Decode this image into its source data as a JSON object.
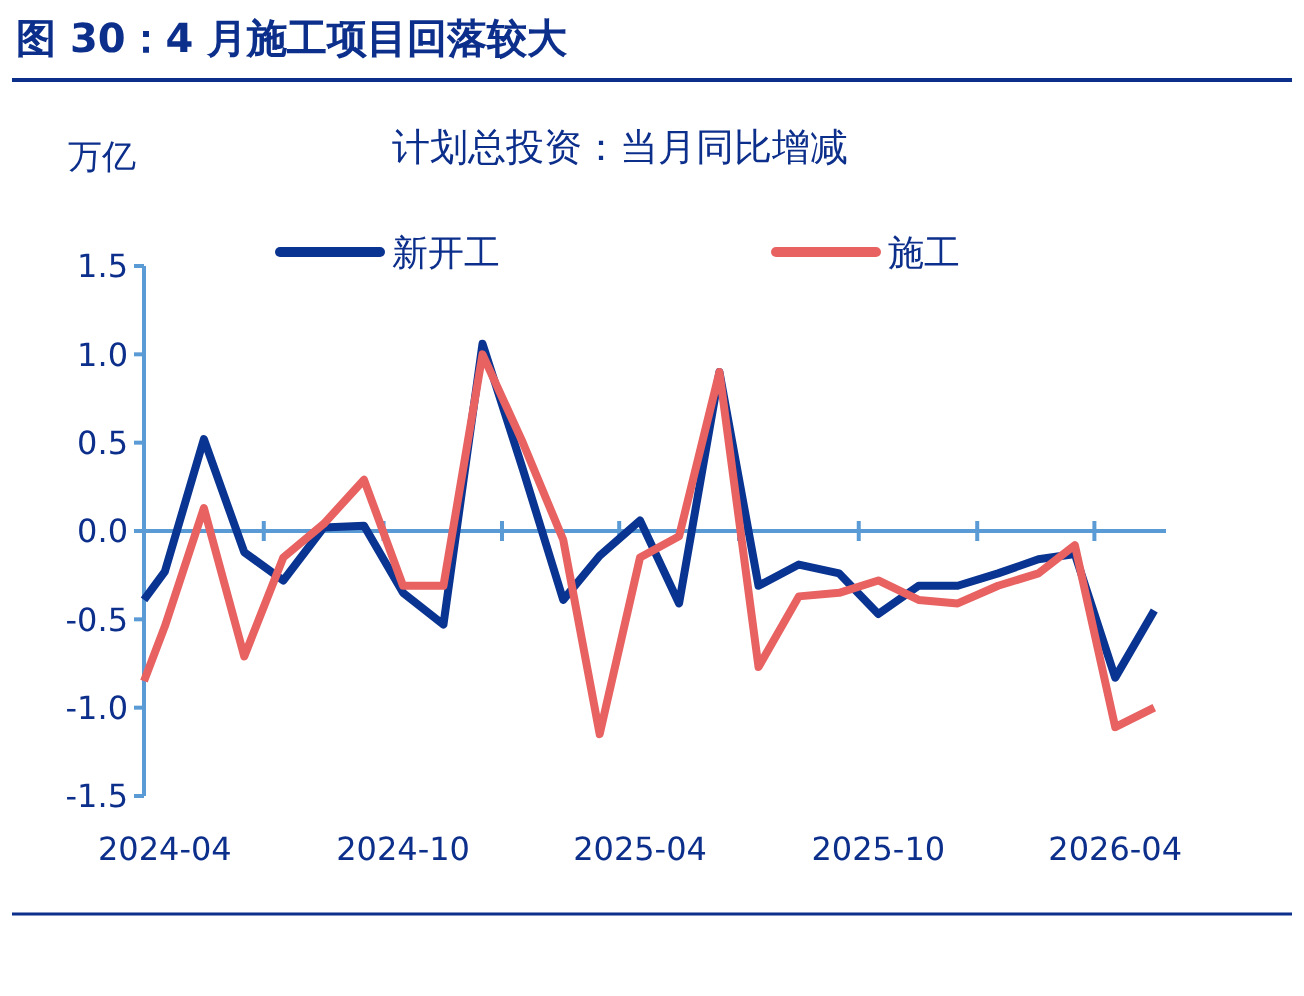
{
  "chart_data": {
    "type": "line",
    "title": "图 30：4 月施工项目回落较大",
    "subtitle": "计划总投资：当月同比增减",
    "ylabel": "万亿",
    "x": [
      "2024-03-16",
      "2024-04",
      "2024-05",
      "2024-06",
      "2024-07",
      "2024-08",
      "2024-09",
      "2024-10",
      "2024-11",
      "2024-12",
      "2025-01",
      "2025-02",
      "2025-03",
      "2025-04",
      "2025-05",
      "2025-06",
      "2025-07",
      "2025-08",
      "2025-09",
      "2025-10",
      "2025-11",
      "2025-12",
      "2026-01",
      "2026-02",
      "2026-03",
      "2026-04",
      "2026-05"
    ],
    "series": [
      {
        "name": "新开工",
        "color": "#0a3491",
        "values": [
          -0.39,
          -0.23,
          0.52,
          -0.12,
          -0.28,
          0.02,
          0.03,
          -0.35,
          -0.53,
          1.06,
          0.35,
          -0.39,
          -0.14,
          0.06,
          -0.41,
          0.9,
          -0.31,
          -0.19,
          -0.24,
          -0.47,
          -0.31,
          -0.31,
          -0.24,
          -0.16,
          -0.13,
          -0.83,
          -0.45
        ]
      },
      {
        "name": "施工",
        "color": "#e86262",
        "values": [
          -0.85,
          -0.54,
          0.13,
          -0.71,
          -0.15,
          0.04,
          0.29,
          -0.31,
          -0.31,
          1.0,
          0.5,
          -0.05,
          -1.15,
          -0.15,
          -0.03,
          0.9,
          -0.77,
          -0.37,
          -0.35,
          -0.28,
          -0.39,
          -0.41,
          -0.31,
          -0.24,
          -0.08,
          -1.11,
          -1.0
        ]
      }
    ],
    "xlim": [
      "2024-03-16",
      "2026-05-10"
    ],
    "xticks": [
      {
        "value": "2024-04",
        "label": "2024-04"
      },
      {
        "value": "2024-06-16",
        "label": null
      },
      {
        "value": "2024-09-16",
        "label": null
      },
      {
        "value": "2024-10",
        "label": "2024-10"
      },
      {
        "value": "2024-12-16",
        "label": null
      },
      {
        "value": "2025-03-16",
        "label": null
      },
      {
        "value": "2025-04",
        "label": "2025-04"
      },
      {
        "value": "2025-06-16",
        "label": null
      },
      {
        "value": "2025-09-16",
        "label": null
      },
      {
        "value": "2025-10",
        "label": "2025-10"
      },
      {
        "value": "2025-12-16",
        "label": null
      },
      {
        "value": "2026-03-16",
        "label": null
      },
      {
        "value": "2026-04",
        "label": "2026-04"
      }
    ],
    "ylim": [
      -1.5,
      1.5
    ],
    "yticks": [
      -1.5,
      {
        "value": -1,
        "label": "-1.0"
      },
      {
        "value": -0.5,
        "label": "-0.5"
      },
      {
        "value": 0,
        "label": "0.0"
      },
      {
        "value": 0.5,
        "label": "0.5"
      },
      {
        "value": 1,
        "label": "1.0"
      },
      1.5
    ],
    "ref_lines": [
      {
        "axis": "y",
        "value": 0,
        "color": "#5b9bd5"
      }
    ],
    "legend": "top",
    "grid": false,
    "marker": "none",
    "line_style": "solid"
  }
}
